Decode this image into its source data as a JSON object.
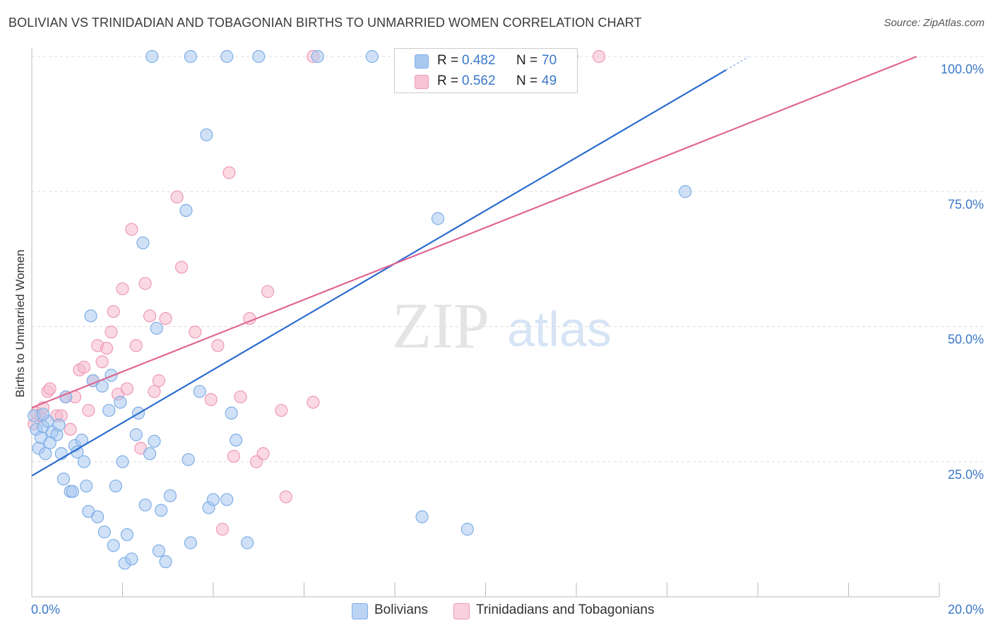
{
  "title": "BOLIVIAN VS TRINIDADIAN AND TOBAGONIAN BIRTHS TO UNMARRIED WOMEN CORRELATION CHART",
  "source": "Source: ZipAtlas.com",
  "watermark": {
    "zip": "ZIP",
    "atlas": "atlas"
  },
  "colors": {
    "blue_fill": "#a9c8f0",
    "blue_stroke": "#7eaee6",
    "blue_line": "#2b6ccf",
    "pink_fill": "#f6b9cc",
    "pink_stroke": "#ee9ab6",
    "pink_line": "#e06694",
    "tick_text": "#3b78c8",
    "grid": "#dddddd"
  },
  "legend_top": [
    {
      "r_label": "R =",
      "r_value": "0.482",
      "n_label": "N =",
      "n_value": "70"
    },
    {
      "r_label": "R =",
      "r_value": "0.562",
      "n_label": "N =",
      "n_value": "49"
    }
  ],
  "legend_bottom": [
    "Bolivians",
    "Trinidadians and Tobagonians"
  ],
  "chart_data": {
    "type": "scatter",
    "title": "BOLIVIAN VS TRINIDADIAN AND TOBAGONIAN BIRTHS TO UNMARRIED WOMEN CORRELATION CHART",
    "xlabel": "",
    "ylabel": "Births to Unmarried Women",
    "xlim": [
      0,
      20
    ],
    "ylim": [
      0,
      100
    ],
    "x_tick_labels": [
      "0.0%",
      "20.0%"
    ],
    "y_tick_labels": [
      "25.0%",
      "50.0%",
      "75.0%",
      "100.0%"
    ],
    "y_tick_values": [
      25,
      50,
      75,
      100
    ],
    "grid": true,
    "legend": "bottom",
    "series": [
      {
        "name": "Bolivians",
        "r": 0.482,
        "n": 70,
        "trend": {
          "x": [
            0,
            15.3
          ],
          "y": [
            22.4,
            97.5
          ]
        },
        "points": [
          [
            0.05,
            33.5
          ],
          [
            0.1,
            31.0
          ],
          [
            0.15,
            27.5
          ],
          [
            0.2,
            29.5
          ],
          [
            0.25,
            31.5
          ],
          [
            0.3,
            26.5
          ],
          [
            0.35,
            32.5
          ],
          [
            0.45,
            30.5
          ],
          [
            0.55,
            30.0
          ],
          [
            0.65,
            26.5
          ],
          [
            0.7,
            21.8
          ],
          [
            0.75,
            37.0
          ],
          [
            0.85,
            19.5
          ],
          [
            0.9,
            19.5
          ],
          [
            0.95,
            28.0
          ],
          [
            1.0,
            26.8
          ],
          [
            1.1,
            29.0
          ],
          [
            1.15,
            25.0
          ],
          [
            1.2,
            20.5
          ],
          [
            1.25,
            15.8
          ],
          [
            1.3,
            52.0
          ],
          [
            1.35,
            40.0
          ],
          [
            1.45,
            14.8
          ],
          [
            1.55,
            39.0
          ],
          [
            1.6,
            12.0
          ],
          [
            1.7,
            34.5
          ],
          [
            1.75,
            41.0
          ],
          [
            1.8,
            9.5
          ],
          [
            1.85,
            20.5
          ],
          [
            1.95,
            36.0
          ],
          [
            2.0,
            25.0
          ],
          [
            2.05,
            6.2
          ],
          [
            2.1,
            11.5
          ],
          [
            2.2,
            7.0
          ],
          [
            2.3,
            30.0
          ],
          [
            2.35,
            34.0
          ],
          [
            2.45,
            65.5
          ],
          [
            2.5,
            17.0
          ],
          [
            2.6,
            26.5
          ],
          [
            2.65,
            100
          ],
          [
            2.7,
            28.8
          ],
          [
            2.75,
            49.7
          ],
          [
            2.8,
            8.5
          ],
          [
            2.85,
            16.0
          ],
          [
            2.95,
            6.5
          ],
          [
            3.05,
            18.7
          ],
          [
            3.4,
            71.5
          ],
          [
            3.45,
            25.4
          ],
          [
            3.5,
            10.0
          ],
          [
            3.5,
            100
          ],
          [
            3.7,
            38.0
          ],
          [
            3.85,
            85.5
          ],
          [
            3.9,
            16.5
          ],
          [
            4.0,
            18.0
          ],
          [
            4.3,
            100
          ],
          [
            4.3,
            18.0
          ],
          [
            4.4,
            34.0
          ],
          [
            4.5,
            29.0
          ],
          [
            4.75,
            10.0
          ],
          [
            5.0,
            100
          ],
          [
            6.3,
            100
          ],
          [
            7.5,
            100
          ],
          [
            8.6,
            14.8
          ],
          [
            8.95,
            70.0
          ],
          [
            9.6,
            12.5
          ],
          [
            11.9,
            100
          ],
          [
            14.4,
            75.0
          ],
          [
            0.25,
            33.8
          ],
          [
            0.4,
            28.5
          ],
          [
            0.6,
            31.8
          ]
        ]
      },
      {
        "name": "Trinidadians and Tobagonians",
        "r": 0.562,
        "n": 49,
        "trend": {
          "x": [
            0,
            19.5
          ],
          "y": [
            35.0,
            100.0
          ]
        },
        "points": [
          [
            0.05,
            32.0
          ],
          [
            0.1,
            34.0
          ],
          [
            0.2,
            33.5
          ],
          [
            0.25,
            35.0
          ],
          [
            0.35,
            38.0
          ],
          [
            0.4,
            38.5
          ],
          [
            0.55,
            33.5
          ],
          [
            0.65,
            33.5
          ],
          [
            0.75,
            37.0
          ],
          [
            0.85,
            31.0
          ],
          [
            0.95,
            37.0
          ],
          [
            1.05,
            42.0
          ],
          [
            1.15,
            42.5
          ],
          [
            1.25,
            34.5
          ],
          [
            1.35,
            40.0
          ],
          [
            1.45,
            46.5
          ],
          [
            1.55,
            43.5
          ],
          [
            1.65,
            46.0
          ],
          [
            1.75,
            49.0
          ],
          [
            1.8,
            52.8
          ],
          [
            1.9,
            37.5
          ],
          [
            2.0,
            57.0
          ],
          [
            2.1,
            38.5
          ],
          [
            2.2,
            68.0
          ],
          [
            2.3,
            46.5
          ],
          [
            2.4,
            27.5
          ],
          [
            2.5,
            58.0
          ],
          [
            2.6,
            52.0
          ],
          [
            2.7,
            38.0
          ],
          [
            2.8,
            40.0
          ],
          [
            2.95,
            51.5
          ],
          [
            3.2,
            74.0
          ],
          [
            3.3,
            61.0
          ],
          [
            3.6,
            49.0
          ],
          [
            3.95,
            36.5
          ],
          [
            4.1,
            46.5
          ],
          [
            4.2,
            12.5
          ],
          [
            4.35,
            78.5
          ],
          [
            4.45,
            26.0
          ],
          [
            4.6,
            37.0
          ],
          [
            4.8,
            51.5
          ],
          [
            4.95,
            25.0
          ],
          [
            5.1,
            26.5
          ],
          [
            5.2,
            56.5
          ],
          [
            5.5,
            34.5
          ],
          [
            5.6,
            18.5
          ],
          [
            6.2,
            36.0
          ],
          [
            6.2,
            100
          ],
          [
            12.5,
            100
          ]
        ]
      }
    ]
  }
}
